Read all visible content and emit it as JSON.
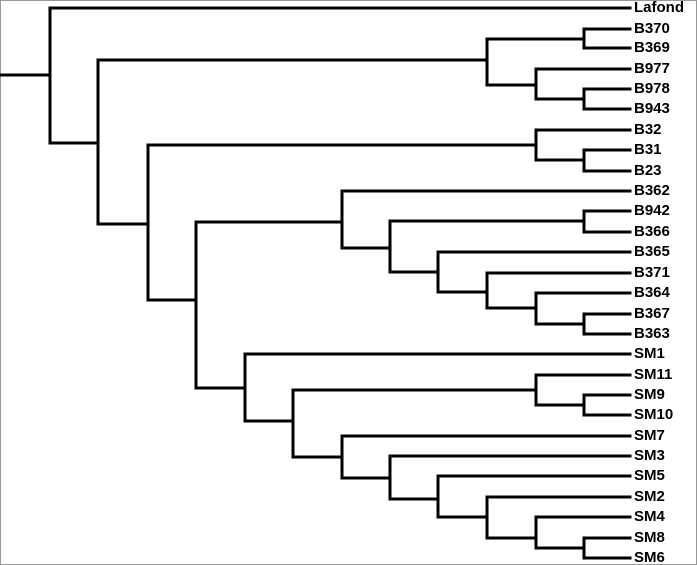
{
  "tree": {
    "leaves": [
      "Lafond",
      "B370",
      "B369",
      "B977",
      "B978",
      "B943",
      "B32",
      "B31",
      "B23",
      "B362",
      "B942",
      "B366",
      "B365",
      "B371",
      "B364",
      "B367",
      "B363",
      "SM1",
      "SM11",
      "SM9",
      "SM10",
      "SM7",
      "SM3",
      "SM5",
      "SM2",
      "SM4",
      "SM8",
      "SM6"
    ]
  }
}
